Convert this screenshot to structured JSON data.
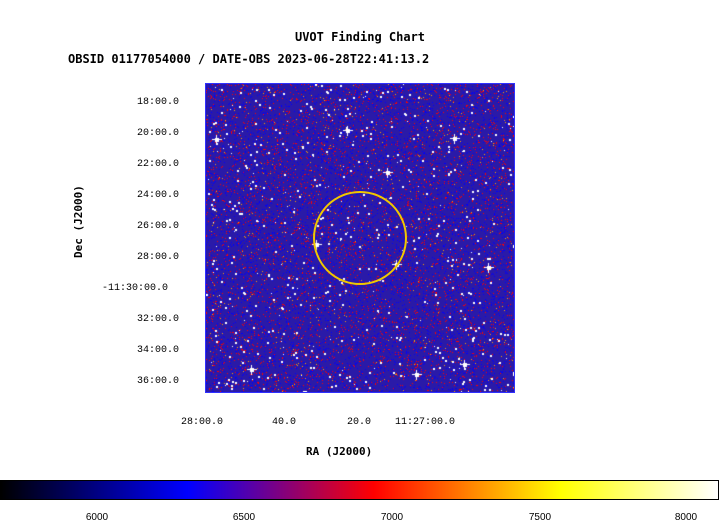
{
  "title": "UVOT Finding Chart",
  "subtitle": "OBSID 01177054000 / DATE-OBS 2023-06-28T22:41:13.2",
  "axes": {
    "xlabel": "RA (J2000)",
    "ylabel": "Dec (J2000)",
    "dec_ticks": [
      "18:00.0",
      "20:00.0",
      "22:00.0",
      "24:00.0",
      "26:00.0",
      "28:00.0",
      "-11:30:00.0",
      "32:00.0",
      "34:00.0",
      "36:00.0"
    ],
    "ra_ticks": [
      "28:00.0",
      "40.0",
      "20.0",
      "11:27:00.0"
    ]
  },
  "colorbar": {
    "ticks": [
      "6000",
      "6500",
      "7000",
      "7500",
      "8000"
    ],
    "colors": [
      "#000000",
      "#0000ff",
      "#ff0000",
      "#ffff00",
      "#ffffff"
    ]
  },
  "image": {
    "background_color": "#2a1aa8",
    "noise_colors": [
      "#0000ff",
      "#ff0000",
      "#ffffff",
      "#ffa000"
    ],
    "region_color": "#f0c800",
    "region_shape": "circle"
  }
}
